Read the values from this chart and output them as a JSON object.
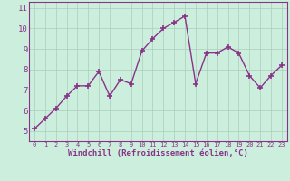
{
  "x": [
    0,
    1,
    2,
    3,
    4,
    5,
    6,
    7,
    8,
    9,
    10,
    11,
    12,
    13,
    14,
    15,
    16,
    17,
    18,
    19,
    20,
    21,
    22,
    23
  ],
  "y": [
    5.1,
    5.6,
    6.1,
    6.7,
    7.2,
    7.2,
    7.9,
    6.7,
    7.5,
    7.3,
    8.9,
    9.5,
    10.0,
    10.3,
    10.6,
    7.3,
    8.8,
    8.8,
    9.1,
    8.8,
    7.7,
    7.1,
    7.7,
    8.2
  ],
  "line_color": "#883388",
  "marker": "+",
  "marker_size": 4,
  "linewidth": 1.0,
  "xlabel": "Windchill (Refroidissement éolien,°C)",
  "xlabel_fontsize": 6.5,
  "xlabel_color": "#883388",
  "bg_color": "#cceedd",
  "grid_color": "#aaccbb",
  "spine_color": "#883388",
  "tick_color": "#883388",
  "ylim": [
    4.5,
    11.3
  ],
  "xlim": [
    -0.5,
    23.5
  ],
  "yticks": [
    5,
    6,
    7,
    8,
    9,
    10,
    11
  ],
  "xticks": [
    0,
    1,
    2,
    3,
    4,
    5,
    6,
    7,
    8,
    9,
    10,
    11,
    12,
    13,
    14,
    15,
    16,
    17,
    18,
    19,
    20,
    21,
    22,
    23
  ],
  "ytick_fontsize": 6.5,
  "xtick_fontsize": 5.0
}
